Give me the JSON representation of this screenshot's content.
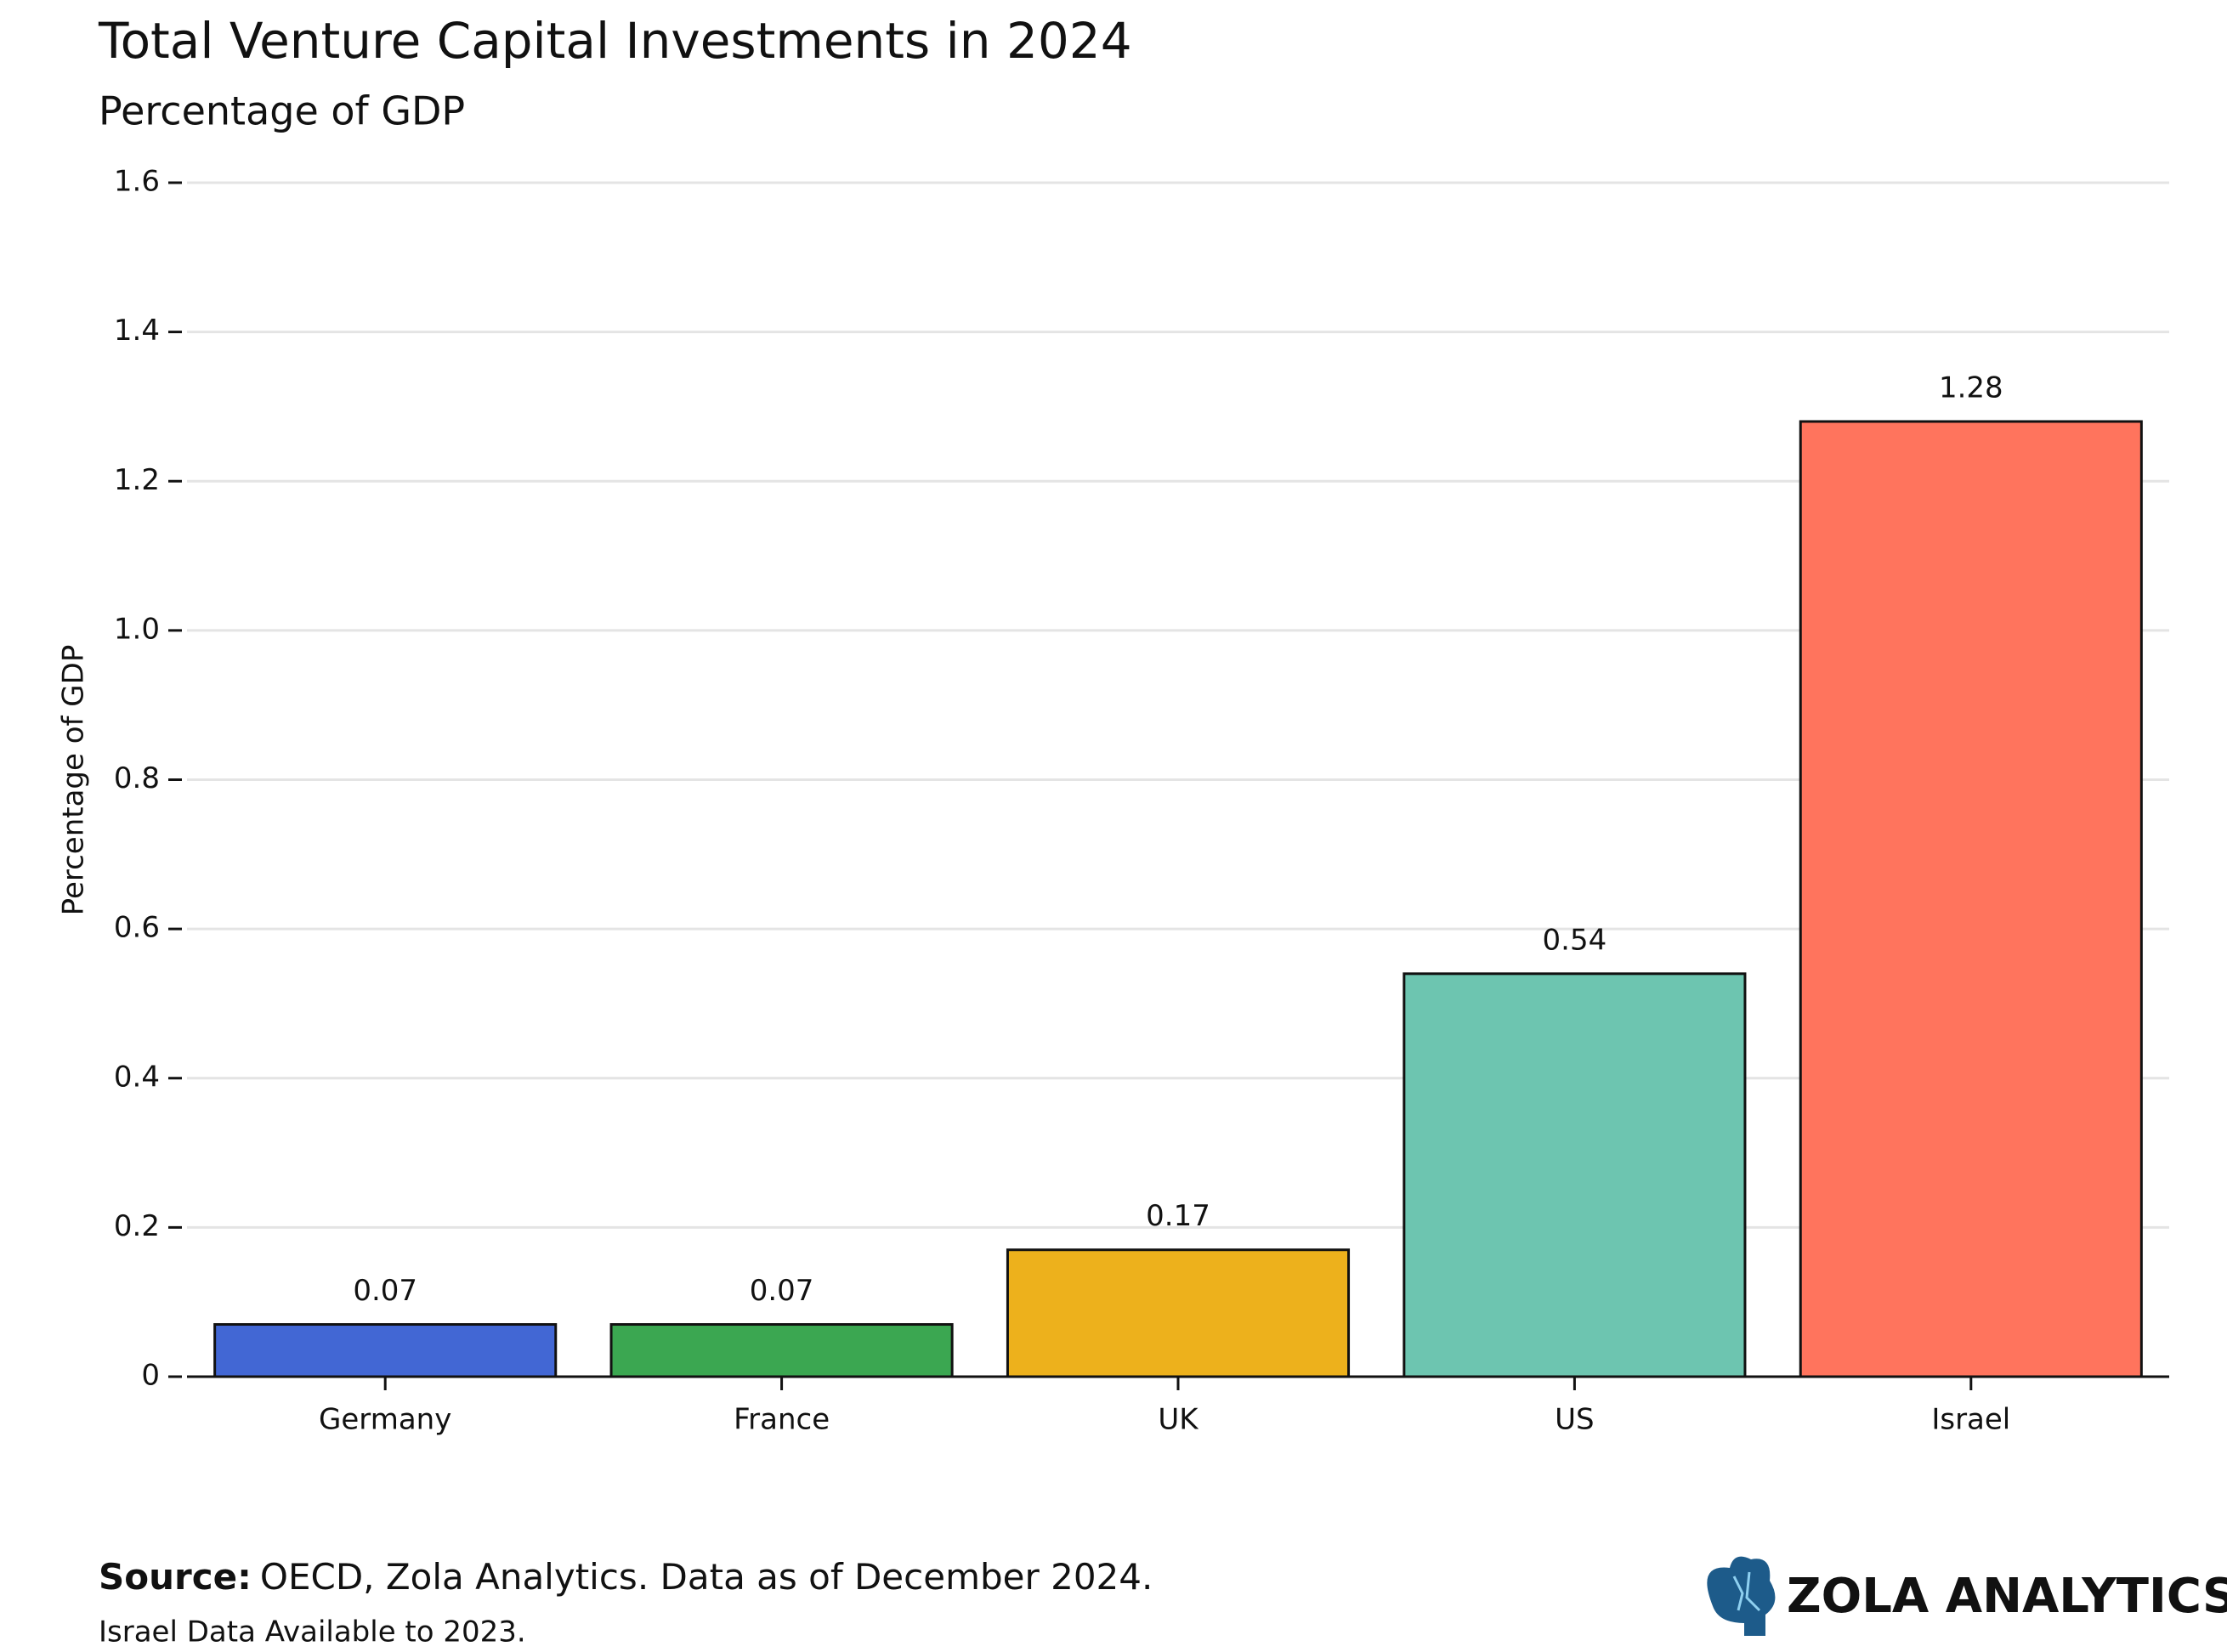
{
  "chart_data": {
    "type": "bar",
    "title": "Total Venture Capital Investments in 2024",
    "subtitle": "Percentage of GDP",
    "y_label": "Percentage of GDP",
    "categories": [
      "Germany",
      "France",
      "UK",
      "US",
      "Israel"
    ],
    "values": [
      0.07,
      0.07,
      0.17,
      0.54,
      1.28
    ],
    "colors": [
      "#4267d4",
      "#3ba751",
      "#edb11c",
      "#6dc5b0",
      "#ff745d"
    ],
    "ylim": [
      0,
      1.6
    ],
    "yticks": [
      0,
      0.2,
      0.4,
      0.6,
      0.8,
      {
        "value": 1,
        "label": "1.0"
      },
      1.2,
      1.4,
      1.6
    ],
    "grid": true,
    "source_label": "Source:",
    "source_text": "OECD, Zola Analytics. Data as of December 2024.",
    "note": "Israel Data Available to 2023.",
    "brand": "ZOLA ANALYTICS"
  }
}
